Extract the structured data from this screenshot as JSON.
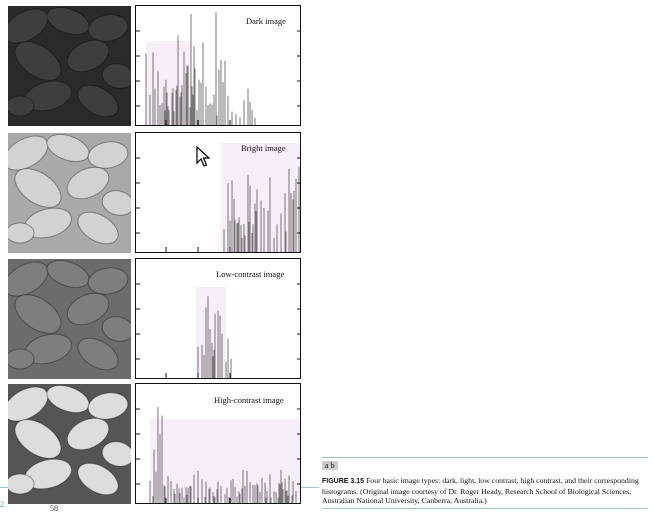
{
  "panels": [
    {
      "id": "dark",
      "label": "Dark image",
      "photo_tone": "#2a2a2a",
      "photo_shade": "#3e3e3e"
    },
    {
      "id": "bright",
      "label": "Bright image",
      "photo_tone": "#a9a9a9",
      "photo_shade": "#d2d2d2"
    },
    {
      "id": "low",
      "label": "Low-contrast image",
      "photo_tone": "#6c6c6c",
      "photo_shade": "#7e7e7e"
    },
    {
      "id": "high",
      "label": "High-contrast image",
      "photo_tone": "#555555",
      "photo_shade": "#dddddd"
    }
  ],
  "caption": {
    "tag": "a b",
    "figure": "FIGURE 3.15",
    "text": "Four basic image types: dark, light, low contrast, high contrast, and their corresponding histograms. (Original image courtesy of Dr. Roger Heady, Research School of Biological Sciences, Australian National University, Canberra, Australia.)"
  },
  "colors": {
    "highlight": "#f8eefa",
    "bar": "#777777",
    "rule": "#9dc2c7"
  },
  "page_fragments": {
    "left_number": "2",
    "bottom_mark": "58"
  }
}
